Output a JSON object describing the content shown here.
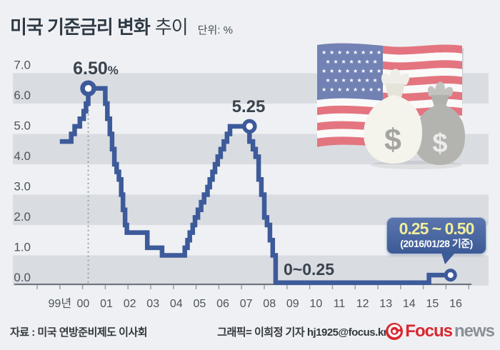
{
  "header": {
    "title_main": "미국 기준금리 변화",
    "title_tail": "추이",
    "unit_label": "단위: %"
  },
  "chart_data": {
    "type": "line",
    "title": "미국 기준금리 변화 추이",
    "unit": "%",
    "line_style": "step",
    "x_axis": {
      "labels": [
        "99년",
        "00",
        "01",
        "02",
        "03",
        "04",
        "05",
        "06",
        "07",
        "08",
        "09",
        "10",
        "11",
        "12",
        "13",
        "14",
        "15",
        "16"
      ],
      "first_year": 1999,
      "last_year": 2016
    },
    "y_axis": {
      "labels": [
        "7.0",
        "6.0",
        "5.0",
        "4.0",
        "3.0",
        "2.0",
        "1.0",
        "0.0"
      ],
      "min": 0.0,
      "max": 7.0
    },
    "layout": {
      "grid": "striped-bands",
      "legend": false
    },
    "series": [
      {
        "name": "미국 기준금리",
        "step_points": [
          [
            1999.0,
            4.75
          ],
          [
            1999.5,
            4.75
          ],
          [
            1999.5,
            5.0
          ],
          [
            1999.65,
            5.0
          ],
          [
            1999.65,
            5.25
          ],
          [
            1999.88,
            5.25
          ],
          [
            1999.88,
            5.5
          ],
          [
            2000.05,
            5.5
          ],
          [
            2000.05,
            5.75
          ],
          [
            2000.15,
            5.75
          ],
          [
            2000.15,
            6.0
          ],
          [
            2000.25,
            6.0
          ],
          [
            2000.25,
            6.5
          ],
          [
            2001.0,
            6.5
          ],
          [
            2001.0,
            6.0
          ],
          [
            2001.09,
            6.0
          ],
          [
            2001.09,
            5.5
          ],
          [
            2001.2,
            5.5
          ],
          [
            2001.2,
            5.0
          ],
          [
            2001.3,
            5.0
          ],
          [
            2001.3,
            4.5
          ],
          [
            2001.4,
            4.5
          ],
          [
            2001.4,
            4.0
          ],
          [
            2001.5,
            4.0
          ],
          [
            2001.5,
            3.75
          ],
          [
            2001.6,
            3.75
          ],
          [
            2001.6,
            3.5
          ],
          [
            2001.7,
            3.5
          ],
          [
            2001.7,
            3.0
          ],
          [
            2001.78,
            3.0
          ],
          [
            2001.78,
            2.5
          ],
          [
            2001.87,
            2.5
          ],
          [
            2001.87,
            2.0
          ],
          [
            2001.95,
            2.0
          ],
          [
            2001.95,
            1.75
          ],
          [
            2002.85,
            1.75
          ],
          [
            2002.85,
            1.25
          ],
          [
            2003.5,
            1.25
          ],
          [
            2003.5,
            1.0
          ],
          [
            2004.5,
            1.0
          ],
          [
            2004.5,
            1.25
          ],
          [
            2004.62,
            1.25
          ],
          [
            2004.62,
            1.5
          ],
          [
            2004.72,
            1.5
          ],
          [
            2004.72,
            1.75
          ],
          [
            2004.85,
            1.75
          ],
          [
            2004.85,
            2.0
          ],
          [
            2004.95,
            2.0
          ],
          [
            2004.95,
            2.25
          ],
          [
            2005.08,
            2.25
          ],
          [
            2005.08,
            2.5
          ],
          [
            2005.22,
            2.5
          ],
          [
            2005.22,
            2.75
          ],
          [
            2005.35,
            2.75
          ],
          [
            2005.35,
            3.0
          ],
          [
            2005.5,
            3.0
          ],
          [
            2005.5,
            3.25
          ],
          [
            2005.6,
            3.25
          ],
          [
            2005.6,
            3.5
          ],
          [
            2005.72,
            3.5
          ],
          [
            2005.72,
            3.75
          ],
          [
            2005.83,
            3.75
          ],
          [
            2005.83,
            4.0
          ],
          [
            2005.95,
            4.0
          ],
          [
            2005.95,
            4.25
          ],
          [
            2006.08,
            4.25
          ],
          [
            2006.08,
            4.5
          ],
          [
            2006.22,
            4.5
          ],
          [
            2006.22,
            4.75
          ],
          [
            2006.36,
            4.75
          ],
          [
            2006.36,
            5.0
          ],
          [
            2006.49,
            5.0
          ],
          [
            2006.49,
            5.25
          ],
          [
            2007.35,
            5.25
          ],
          [
            2007.35,
            4.75
          ],
          [
            2007.5,
            4.75
          ],
          [
            2007.5,
            4.5
          ],
          [
            2007.62,
            4.5
          ],
          [
            2007.62,
            4.25
          ],
          [
            2007.75,
            4.25
          ],
          [
            2007.75,
            3.5
          ],
          [
            2007.87,
            3.5
          ],
          [
            2007.87,
            3.0
          ],
          [
            2008.0,
            3.0
          ],
          [
            2008.0,
            2.25
          ],
          [
            2008.12,
            2.25
          ],
          [
            2008.12,
            2.0
          ],
          [
            2008.25,
            2.0
          ],
          [
            2008.25,
            1.5
          ],
          [
            2008.37,
            1.5
          ],
          [
            2008.37,
            1.0
          ],
          [
            2008.5,
            1.0
          ],
          [
            2008.5,
            0.1
          ],
          [
            2015.25,
            0.1
          ],
          [
            2015.25,
            0.35
          ],
          [
            2016.2,
            0.35
          ]
        ]
      }
    ],
    "markers": [
      {
        "x": 2000.25,
        "rate": 6.5,
        "label": "6.50%",
        "dotted_line": true
      },
      {
        "x": 2007.35,
        "rate": 5.25,
        "label": "5.25",
        "dotted_line": false
      },
      {
        "x": 2016.2,
        "rate": 0.35,
        "label": "0.25~0.50",
        "dotted_line": false
      }
    ],
    "annotations": {
      "peak_2000_value": "6.50",
      "peak_2000_suffix": "%",
      "peak_2007": "5.25",
      "zero_range": "0~0.25",
      "callout_value": "0.25 ~ 0.50",
      "callout_date": "(2016/01/28 기준)"
    }
  },
  "footer": {
    "source": "자료 : 미국 연방준비제도 이사회",
    "credit": "그래픽= 이희정 기자 hj1925@focus.kr",
    "logo_brand": "Focus",
    "logo_suffix": "news"
  },
  "colors": {
    "background": "#eef0f3",
    "stripe": "#d9dce1",
    "line": "#3d5a9a",
    "axis": "#6e747b",
    "tick": "#9aa0a6",
    "text_dark": "#39434d",
    "callout_bg": "#3c5a96",
    "callout_value": "#f1ee9b",
    "callout_date": "#ffffff",
    "logo_red": "#d7282f",
    "logo_gray": "#8a9097"
  }
}
